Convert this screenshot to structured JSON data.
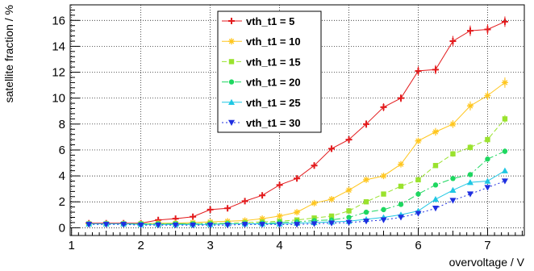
{
  "chart_data": {
    "type": "line",
    "xlabel": "overvoltage / V",
    "ylabel": "satellite fraction / %",
    "xlim": [
      0.98,
      7.53
    ],
    "ylim": [
      -0.6,
      17.2
    ],
    "x_ticks": [
      1,
      2,
      3,
      4,
      5,
      6,
      7
    ],
    "y_ticks": [
      0,
      2,
      4,
      6,
      8,
      10,
      12,
      14,
      16
    ],
    "grid": true,
    "legend_position": "top-center",
    "series": [
      {
        "name": "vth_t1 = 5",
        "color": "#e31a1c",
        "marker": "plus",
        "dash": "solid",
        "x": [
          1.25,
          1.5,
          1.75,
          2.0,
          2.25,
          2.5,
          2.75,
          3.0,
          3.25,
          3.5,
          3.75,
          4.0,
          4.25,
          4.5,
          4.75,
          5.0,
          5.25,
          5.5,
          5.75,
          6.0,
          6.25,
          6.5,
          6.75,
          7.0,
          7.25
        ],
        "y": [
          0.35,
          0.35,
          0.35,
          0.35,
          0.6,
          0.7,
          0.85,
          1.4,
          1.5,
          2.05,
          2.5,
          3.3,
          3.8,
          4.8,
          6.1,
          6.8,
          8.0,
          9.3,
          10.0,
          12.1,
          12.2,
          14.4,
          15.2,
          15.3,
          15.9
        ],
        "err": [
          0.1,
          0.1,
          0.1,
          0.1,
          0.1,
          0.1,
          0.15,
          0.15,
          0.15,
          0.15,
          0.2,
          0.2,
          0.2,
          0.25,
          0.25,
          0.25,
          0.3,
          0.3,
          0.3,
          0.35,
          0.35,
          0.4,
          0.4,
          0.4,
          0.4
        ]
      },
      {
        "name": "vth_t1 = 10",
        "color": "#ffc61e",
        "marker": "star",
        "dash": "solid",
        "x": [
          1.25,
          1.5,
          1.75,
          2.0,
          2.25,
          2.5,
          2.75,
          3.0,
          3.25,
          3.5,
          3.75,
          4.0,
          4.25,
          4.5,
          4.75,
          5.0,
          5.25,
          5.5,
          5.75,
          6.0,
          6.25,
          6.5,
          6.75,
          7.0,
          7.25
        ],
        "y": [
          0.3,
          0.3,
          0.3,
          0.3,
          0.35,
          0.35,
          0.4,
          0.45,
          0.5,
          0.55,
          0.7,
          0.9,
          1.2,
          1.9,
          2.2,
          2.9,
          3.7,
          4.0,
          4.9,
          6.7,
          7.4,
          8.0,
          9.4,
          10.2,
          11.2
        ],
        "err": [
          0.05,
          0.05,
          0.05,
          0.05,
          0.05,
          0.05,
          0.05,
          0.05,
          0.05,
          0.05,
          0.08,
          0.1,
          0.1,
          0.1,
          0.12,
          0.15,
          0.15,
          0.18,
          0.2,
          0.25,
          0.3,
          0.3,
          0.35,
          0.35,
          0.4
        ]
      },
      {
        "name": "vth_t1 = 15",
        "color": "#9ae22e",
        "marker": "square",
        "dash": "dash",
        "x": [
          1.25,
          1.5,
          1.75,
          2.0,
          2.25,
          2.5,
          2.75,
          3.0,
          3.25,
          3.5,
          3.75,
          4.0,
          4.25,
          4.5,
          4.75,
          5.0,
          5.25,
          5.5,
          5.75,
          6.0,
          6.25,
          6.5,
          6.75,
          7.0,
          7.25
        ],
        "y": [
          0.3,
          0.3,
          0.3,
          0.3,
          0.3,
          0.3,
          0.3,
          0.35,
          0.35,
          0.4,
          0.45,
          0.5,
          0.6,
          0.75,
          0.9,
          1.3,
          2.0,
          2.6,
          3.2,
          3.7,
          4.8,
          5.7,
          6.2,
          6.8,
          8.4
        ],
        "err": [
          0.05,
          0.05,
          0.05,
          0.05,
          0.05,
          0.05,
          0.05,
          0.05,
          0.05,
          0.05,
          0.05,
          0.05,
          0.05,
          0.06,
          0.08,
          0.1,
          0.1,
          0.12,
          0.15,
          0.18,
          0.2,
          0.22,
          0.25,
          0.25,
          0.3
        ]
      },
      {
        "name": "vth_t1 = 20",
        "color": "#1ed760",
        "marker": "circle",
        "dash": "dashdot",
        "x": [
          1.25,
          1.5,
          1.75,
          2.0,
          2.25,
          2.5,
          2.75,
          3.0,
          3.25,
          3.5,
          3.75,
          4.0,
          4.25,
          4.5,
          4.75,
          5.0,
          5.25,
          5.5,
          5.75,
          6.0,
          6.25,
          6.5,
          6.75,
          7.0,
          7.25
        ],
        "y": [
          0.3,
          0.3,
          0.3,
          0.3,
          0.3,
          0.3,
          0.3,
          0.3,
          0.3,
          0.3,
          0.35,
          0.4,
          0.45,
          0.55,
          0.6,
          0.8,
          1.2,
          1.4,
          1.8,
          2.6,
          3.3,
          3.8,
          4.1,
          5.3,
          5.9
        ],
        "err": [
          0.05,
          0.05,
          0.05,
          0.05,
          0.05,
          0.05,
          0.05,
          0.05,
          0.05,
          0.05,
          0.05,
          0.05,
          0.05,
          0.05,
          0.05,
          0.06,
          0.08,
          0.1,
          0.1,
          0.12,
          0.15,
          0.15,
          0.18,
          0.2,
          0.22
        ]
      },
      {
        "name": "vth_t1 = 25",
        "color": "#1fc7e3",
        "marker": "triangle-up",
        "dash": "solid",
        "x": [
          1.25,
          1.5,
          1.75,
          2.0,
          2.25,
          2.5,
          2.75,
          3.0,
          3.25,
          3.5,
          3.75,
          4.0,
          4.25,
          4.5,
          4.75,
          5.0,
          5.25,
          5.5,
          5.75,
          6.0,
          6.25,
          6.5,
          6.75,
          7.0,
          7.25
        ],
        "y": [
          0.3,
          0.3,
          0.3,
          0.25,
          0.25,
          0.25,
          0.25,
          0.25,
          0.3,
          0.3,
          0.3,
          0.3,
          0.35,
          0.4,
          0.45,
          0.5,
          0.65,
          0.8,
          1.0,
          1.3,
          2.2,
          2.9,
          3.5,
          3.6,
          4.4
        ],
        "err": [
          0.05,
          0.05,
          0.05,
          0.05,
          0.05,
          0.05,
          0.05,
          0.05,
          0.05,
          0.05,
          0.05,
          0.05,
          0.05,
          0.05,
          0.05,
          0.05,
          0.06,
          0.08,
          0.1,
          0.1,
          0.12,
          0.15,
          0.18,
          0.2,
          0.2
        ]
      },
      {
        "name": "vth_t1 = 30",
        "color": "#1f2fe0",
        "marker": "triangle-down",
        "dash": "dot",
        "x": [
          1.25,
          1.5,
          1.75,
          2.0,
          2.25,
          2.5,
          2.75,
          3.0,
          3.25,
          3.5,
          3.75,
          4.0,
          4.25,
          4.5,
          4.75,
          5.0,
          5.25,
          5.5,
          5.75,
          6.0,
          6.25,
          6.5,
          6.75,
          7.0,
          7.25
        ],
        "y": [
          0.25,
          0.25,
          0.25,
          0.2,
          0.2,
          0.2,
          0.2,
          0.2,
          0.2,
          0.25,
          0.25,
          0.25,
          0.25,
          0.3,
          0.35,
          0.4,
          0.5,
          0.6,
          0.8,
          1.1,
          1.5,
          2.1,
          2.6,
          3.1,
          3.6
        ],
        "err": [
          0.05,
          0.05,
          0.05,
          0.05,
          0.05,
          0.05,
          0.05,
          0.05,
          0.05,
          0.05,
          0.05,
          0.05,
          0.05,
          0.05,
          0.05,
          0.05,
          0.05,
          0.06,
          0.08,
          0.1,
          0.1,
          0.12,
          0.15,
          0.18,
          0.2
        ]
      }
    ]
  }
}
